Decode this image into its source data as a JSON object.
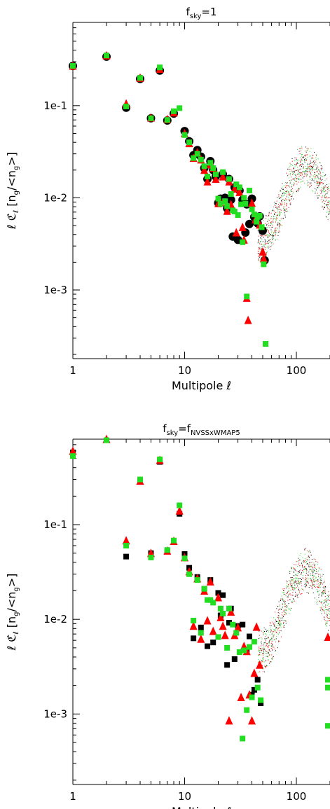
{
  "colors": {
    "black": "#000000",
    "red": "#ff0000",
    "green": "#22dd22"
  },
  "chart_data": [
    {
      "type": "scatter",
      "title": "f",
      "title_sub": "sky",
      "title_rest": "=1",
      "xlabel": "Multipole",
      "xlabel_symbol": "ℓ",
      "ylabel_prefix": "ℓ ℭ",
      "ylabel_sub": "ℓ",
      "ylabel_bracket": "[n",
      "ylabel_bracket_sub": "g",
      "ylabel_bracket_mid": "/<n",
      "ylabel_bracket_sub2": "g",
      "ylabel_bracket_end": ">]",
      "xscale": "log",
      "yscale": "log",
      "xlim": [
        1,
        200
      ],
      "ylim": [
        0.00018,
        0.8
      ],
      "x_ticks": [
        "1",
        "10",
        "100"
      ],
      "y_ticks": [
        "1e-3",
        "1e-2",
        "1e-1"
      ],
      "series": [
        {
          "color": "black",
          "marker": "circle",
          "points": [
            [
              1,
              0.27
            ],
            [
              2,
              0.34
            ],
            [
              3,
              0.095
            ],
            [
              4,
              0.195
            ],
            [
              5,
              0.073
            ],
            [
              6,
              0.24
            ],
            [
              7,
              0.069
            ],
            [
              8,
              0.082
            ],
            [
              10,
              0.053
            ],
            [
              11,
              0.041
            ],
            [
              12,
              0.029
            ],
            [
              13,
              0.033
            ],
            [
              14,
              0.028
            ],
            [
              15,
              0.021
            ],
            [
              16,
              0.016
            ],
            [
              17,
              0.025
            ],
            [
              18,
              0.02
            ],
            [
              19,
              0.017
            ],
            [
              20,
              0.0088
            ],
            [
              21,
              0.0098
            ],
            [
              22,
              0.018
            ],
            [
              23,
              0.01
            ],
            [
              24,
              0.0077
            ],
            [
              25,
              0.016
            ],
            [
              26,
              0.0095
            ],
            [
              27,
              0.0038
            ],
            [
              28,
              0.013
            ],
            [
              30,
              0.0035
            ],
            [
              31,
              0.012
            ],
            [
              33,
              0.0095
            ],
            [
              35,
              0.0042
            ],
            [
              36,
              0.0085
            ],
            [
              38,
              0.0052
            ],
            [
              40,
              0.0098
            ],
            [
              42,
              0.0062
            ],
            [
              45,
              0.0053
            ],
            [
              47,
              0.0063
            ],
            [
              50,
              0.0044
            ],
            [
              52,
              0.0021
            ]
          ]
        },
        {
          "color": "red",
          "marker": "triangle",
          "points": [
            [
              1,
              0.27
            ],
            [
              2,
              0.35
            ],
            [
              3,
              0.105
            ],
            [
              4,
              0.2
            ],
            [
              5,
              0.074
            ],
            [
              6,
              0.25
            ],
            [
              7,
              0.071
            ],
            [
              8,
              0.084
            ],
            [
              10,
              0.05
            ],
            [
              11,
              0.039
            ],
            [
              12,
              0.027
            ],
            [
              13,
              0.031
            ],
            [
              14,
              0.026
            ],
            [
              15,
              0.02
            ],
            [
              16,
              0.015
            ],
            [
              17,
              0.023
            ],
            [
              18,
              0.021
            ],
            [
              19,
              0.016
            ],
            [
              20,
              0.0087
            ],
            [
              21,
              0.009
            ],
            [
              22,
              0.017
            ],
            [
              24,
              0.0072
            ],
            [
              25,
              0.015
            ],
            [
              26,
              0.0085
            ],
            [
              28,
              0.0125
            ],
            [
              29,
              0.0042
            ],
            [
              31,
              0.0115
            ],
            [
              33,
              0.0048
            ],
            [
              34,
              0.0035
            ],
            [
              36,
              0.00082
            ],
            [
              37,
              0.00047
            ],
            [
              40,
              0.0088
            ],
            [
              43,
              0.0058
            ],
            [
              47,
              0.0051
            ],
            [
              50,
              0.0026
            ],
            [
              51,
              0.0022
            ]
          ]
        },
        {
          "color": "green",
          "marker": "square",
          "points": [
            [
              1,
              0.27
            ],
            [
              2,
              0.35
            ],
            [
              3,
              0.098
            ],
            [
              4,
              0.2
            ],
            [
              5,
              0.073
            ],
            [
              6,
              0.26
            ],
            [
              7,
              0.07
            ],
            [
              8,
              0.087
            ],
            [
              9,
              0.094
            ],
            [
              10,
              0.048
            ],
            [
              11,
              0.04
            ],
            [
              12,
              0.027
            ],
            [
              13,
              0.03
            ],
            [
              14,
              0.026
            ],
            [
              15,
              0.022
            ],
            [
              16,
              0.017
            ],
            [
              17,
              0.024
            ],
            [
              18,
              0.021
            ],
            [
              19,
              0.018
            ],
            [
              20,
              0.0098
            ],
            [
              21,
              0.0086
            ],
            [
              22,
              0.019
            ],
            [
              23,
              0.0092
            ],
            [
              24,
              0.0081
            ],
            [
              25,
              0.016
            ],
            [
              26,
              0.011
            ],
            [
              27,
              0.0073
            ],
            [
              28,
              0.0071
            ],
            [
              29,
              0.014
            ],
            [
              30,
              0.0065
            ],
            [
              31,
              0.013
            ],
            [
              32,
              0.0085
            ],
            [
              33,
              0.0033
            ],
            [
              34,
              0.01
            ],
            [
              35,
              0.0086
            ],
            [
              36,
              0.00085
            ],
            [
              38,
              0.012
            ],
            [
              40,
              0.0075
            ],
            [
              42,
              0.0066
            ],
            [
              44,
              0.0055
            ],
            [
              45,
              0.0062
            ],
            [
              47,
              0.0064
            ],
            [
              49,
              0.0048
            ],
            [
              51,
              0.0019
            ],
            [
              53,
              0.00026
            ]
          ]
        }
      ]
    },
    {
      "type": "scatter",
      "title": "f",
      "title_sub": "sky",
      "title_rest": "=f",
      "title_sub2": "NVSSxWMAP5",
      "xlabel": "Multipole",
      "xlabel_symbol": "ℓ",
      "ylabel_prefix": "ℓ ℭ",
      "ylabel_sub": "ℓ",
      "ylabel_bracket": "[n",
      "ylabel_bracket_sub": "g",
      "ylabel_bracket_mid": "/<n",
      "ylabel_bracket_sub2": "g",
      "ylabel_bracket_end": ">]",
      "xscale": "log",
      "yscale": "log",
      "xlim": [
        1,
        200
      ],
      "ylim": [
        0.00018,
        0.8
      ],
      "x_ticks": [
        "1",
        "10",
        "100"
      ],
      "y_ticks": [
        "1e-3",
        "1e-2",
        "1e-1"
      ],
      "series": [
        {
          "color": "black",
          "marker": "square",
          "points": [
            [
              1,
              0.58
            ],
            [
              2,
              0.78
            ],
            [
              3,
              0.046
            ],
            [
              4,
              0.29
            ],
            [
              5,
              0.05
            ],
            [
              6,
              0.46
            ],
            [
              7,
              0.052
            ],
            [
              8,
              0.066
            ],
            [
              9,
              0.13
            ],
            [
              10,
              0.049
            ],
            [
              11,
              0.035
            ],
            [
              12,
              0.0063
            ],
            [
              13,
              0.028
            ],
            [
              14,
              0.0082
            ],
            [
              15,
              0.021
            ],
            [
              16,
              0.0052
            ],
            [
              17,
              0.026
            ],
            [
              18,
              0.0057
            ],
            [
              20,
              0.019
            ],
            [
              21,
              0.011
            ],
            [
              22,
              0.018
            ],
            [
              24,
              0.0033
            ],
            [
              25,
              0.0092
            ],
            [
              26,
              0.013
            ],
            [
              28,
              0.0038
            ],
            [
              30,
              0.0085
            ],
            [
              33,
              0.0088
            ],
            [
              36,
              0.0047
            ],
            [
              38,
              0.0066
            ],
            [
              40,
              0.0016
            ],
            [
              42,
              0.0018
            ],
            [
              45,
              0.0023
            ],
            [
              48,
              0.0013
            ]
          ]
        },
        {
          "color": "red",
          "marker": "triangle",
          "points": [
            [
              1,
              0.6
            ],
            [
              2,
              0.8
            ],
            [
              3,
              0.068
            ],
            [
              4,
              0.29
            ],
            [
              5,
              0.05
            ],
            [
              6,
              0.48
            ],
            [
              7,
              0.053
            ],
            [
              8,
              0.067
            ],
            [
              9,
              0.14
            ],
            [
              10,
              0.045
            ],
            [
              11,
              0.032
            ],
            [
              12,
              0.0085
            ],
            [
              13,
              0.027
            ],
            [
              14,
              0.0062
            ],
            [
              15,
              0.02
            ],
            [
              16,
              0.0097
            ],
            [
              17,
              0.025
            ],
            [
              18,
              0.0075
            ],
            [
              20,
              0.017
            ],
            [
              21,
              0.0105
            ],
            [
              22,
              0.0085
            ],
            [
              23,
              0.0068
            ],
            [
              25,
              0.00085
            ],
            [
              26,
              0.012
            ],
            [
              28,
              0.0068
            ],
            [
              30,
              0.0082
            ],
            [
              32,
              0.0015
            ],
            [
              34,
              0.0052
            ],
            [
              36,
              0.0046
            ],
            [
              38,
              0.0016
            ],
            [
              40,
              0.00085
            ],
            [
              42,
              0.0027
            ],
            [
              44,
              0.0083
            ],
            [
              47,
              0.0033
            ],
            [
              200,
              0.0065
            ]
          ]
        },
        {
          "color": "green",
          "marker": "square",
          "points": [
            [
              1,
              0.53
            ],
            [
              2,
              0.78
            ],
            [
              3,
              0.06
            ],
            [
              4,
              0.3
            ],
            [
              5,
              0.045
            ],
            [
              6,
              0.49
            ],
            [
              7,
              0.054
            ],
            [
              8,
              0.068
            ],
            [
              9,
              0.16
            ],
            [
              10,
              0.044
            ],
            [
              11,
              0.03
            ],
            [
              12,
              0.0097
            ],
            [
              13,
              0.026
            ],
            [
              14,
              0.0072
            ],
            [
              15,
              0.021
            ],
            [
              16,
              0.016
            ],
            [
              17,
              0.016
            ],
            [
              18,
              0.015
            ],
            [
              20,
              0.0065
            ],
            [
              21,
              0.013
            ],
            [
              22,
              0.0115
            ],
            [
              24,
              0.005
            ],
            [
              25,
              0.013
            ],
            [
              27,
              0.0088
            ],
            [
              29,
              0.0072
            ],
            [
              31,
              0.0045
            ],
            [
              33,
              0.00055
            ],
            [
              34,
              0.0047
            ],
            [
              36,
              0.0011
            ],
            [
              38,
              0.0051
            ],
            [
              40,
              0.0015
            ],
            [
              42,
              0.0058
            ],
            [
              45,
              0.0019
            ],
            [
              48,
              0.0014
            ],
            [
              200,
              0.0023
            ],
            [
              200,
              0.0019
            ],
            [
              200,
              0.00075
            ]
          ]
        }
      ]
    }
  ]
}
